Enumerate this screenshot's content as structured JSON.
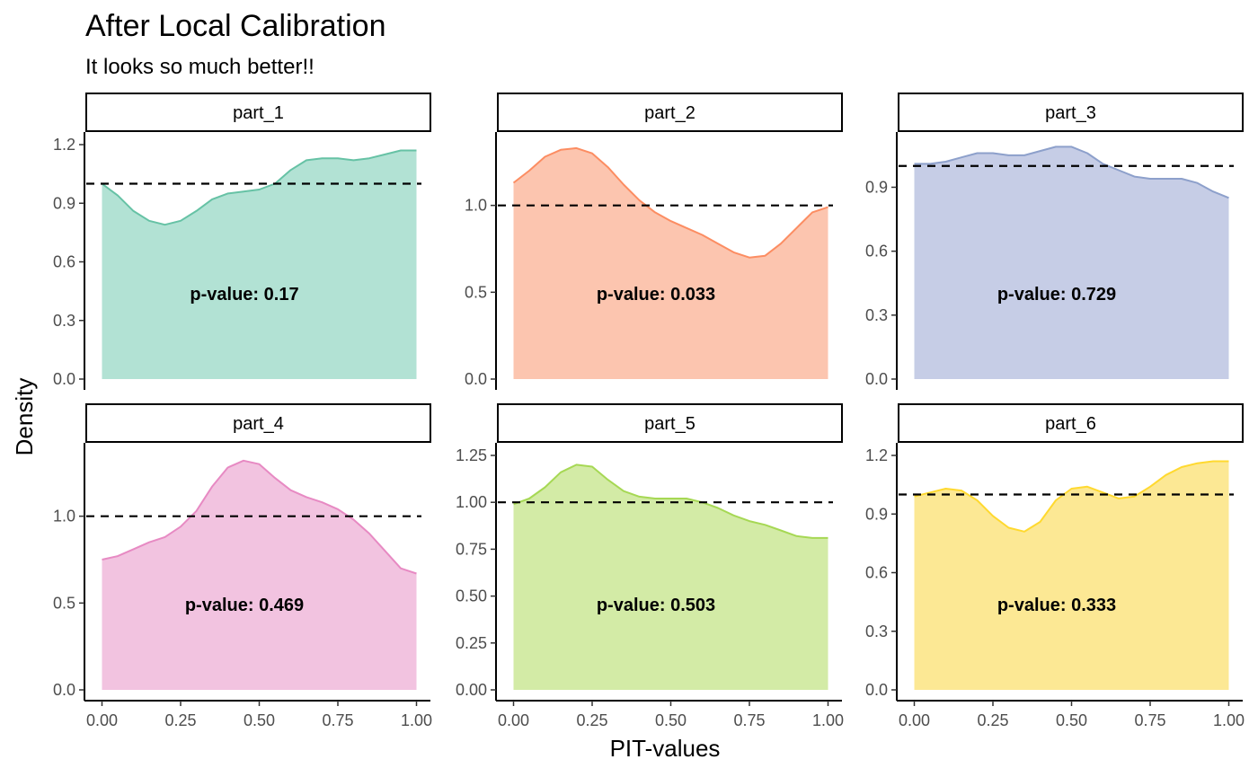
{
  "title": "After Local Calibration",
  "subtitle": "It looks so much better!!",
  "xlabel": "PIT-values",
  "ylabel": "Density",
  "chart_data": [
    {
      "type": "area",
      "panel": "part_1",
      "annotation": "p-value: 0.17",
      "fill": "#B2E2D4",
      "line": "#66C2A5",
      "reference_y": 1.0,
      "xlim": [
        0,
        1
      ],
      "ylim": [
        0,
        1.2
      ],
      "yticks": [
        0.0,
        0.3,
        0.6,
        0.9,
        1.2
      ],
      "ytick_labels": [
        "0.0",
        "0.3",
        "0.6",
        "0.9",
        "1.2"
      ],
      "x": [
        0,
        0.05,
        0.1,
        0.15,
        0.2,
        0.25,
        0.3,
        0.35,
        0.4,
        0.45,
        0.5,
        0.55,
        0.6,
        0.65,
        0.7,
        0.75,
        0.8,
        0.85,
        0.9,
        0.95,
        1.0
      ],
      "y": [
        1.0,
        0.94,
        0.86,
        0.81,
        0.79,
        0.81,
        0.86,
        0.92,
        0.95,
        0.96,
        0.97,
        1.0,
        1.07,
        1.12,
        1.13,
        1.13,
        1.12,
        1.13,
        1.15,
        1.17,
        1.17
      ]
    },
    {
      "type": "area",
      "panel": "part_2",
      "annotation": "p-value: 0.033",
      "fill": "#FCC5AF",
      "line": "#FC8D62",
      "reference_y": 1.0,
      "xlim": [
        0,
        1
      ],
      "ylim": [
        0,
        1.35
      ],
      "yticks": [
        0.0,
        0.5,
        1.0
      ],
      "ytick_labels": [
        "0.0",
        "0.5",
        "1.0"
      ],
      "x": [
        0,
        0.05,
        0.1,
        0.15,
        0.2,
        0.25,
        0.3,
        0.35,
        0.4,
        0.45,
        0.5,
        0.55,
        0.6,
        0.65,
        0.7,
        0.75,
        0.8,
        0.85,
        0.9,
        0.95,
        1.0
      ],
      "y": [
        1.13,
        1.2,
        1.28,
        1.32,
        1.33,
        1.3,
        1.22,
        1.12,
        1.03,
        0.96,
        0.91,
        0.87,
        0.83,
        0.78,
        0.73,
        0.7,
        0.71,
        0.78,
        0.87,
        0.96,
        0.99
      ]
    },
    {
      "type": "area",
      "panel": "part_3",
      "annotation": "p-value: 0.729",
      "fill": "#C6CDE6",
      "line": "#8DA0CB",
      "reference_y": 1.0,
      "xlim": [
        0,
        1
      ],
      "ylim": [
        0,
        1.1
      ],
      "yticks": [
        0.0,
        0.3,
        0.6,
        0.9
      ],
      "ytick_labels": [
        "0.0",
        "0.3",
        "0.6",
        "0.9"
      ],
      "x": [
        0,
        0.05,
        0.1,
        0.15,
        0.2,
        0.25,
        0.3,
        0.35,
        0.4,
        0.45,
        0.5,
        0.55,
        0.6,
        0.65,
        0.7,
        0.75,
        0.8,
        0.85,
        0.9,
        0.95,
        1.0
      ],
      "y": [
        1.01,
        1.01,
        1.02,
        1.04,
        1.06,
        1.06,
        1.05,
        1.05,
        1.07,
        1.09,
        1.09,
        1.06,
        1.01,
        0.98,
        0.95,
        0.94,
        0.94,
        0.94,
        0.92,
        0.88,
        0.85
      ]
    },
    {
      "type": "area",
      "panel": "part_4",
      "annotation": "p-value: 0.469",
      "fill": "#F2C3E0",
      "line": "#E78AC3",
      "reference_y": 1.0,
      "xlim": [
        0,
        1
      ],
      "ylim": [
        0,
        1.35
      ],
      "yticks": [
        0.0,
        0.5,
        1.0
      ],
      "ytick_labels": [
        "0.0",
        "0.5",
        "1.0"
      ],
      "x": [
        0,
        0.05,
        0.1,
        0.15,
        0.2,
        0.25,
        0.3,
        0.35,
        0.4,
        0.45,
        0.5,
        0.55,
        0.6,
        0.65,
        0.7,
        0.75,
        0.8,
        0.85,
        0.9,
        0.95,
        1.0
      ],
      "y": [
        0.75,
        0.77,
        0.81,
        0.85,
        0.88,
        0.94,
        1.03,
        1.17,
        1.28,
        1.32,
        1.3,
        1.22,
        1.15,
        1.11,
        1.08,
        1.04,
        0.98,
        0.9,
        0.8,
        0.7,
        0.67
      ]
    },
    {
      "type": "area",
      "panel": "part_5",
      "annotation": "p-value: 0.503",
      "fill": "#D3EBA6",
      "line": "#A6D854",
      "reference_y": 1.0,
      "xlim": [
        0,
        1
      ],
      "ylim": [
        0,
        1.25
      ],
      "yticks": [
        0.0,
        0.25,
        0.5,
        0.75,
        1.0,
        1.25
      ],
      "ytick_labels": [
        "0.00",
        "0.25",
        "0.50",
        "0.75",
        "1.00",
        "1.25"
      ],
      "x": [
        0,
        0.05,
        0.1,
        0.15,
        0.2,
        0.25,
        0.3,
        0.35,
        0.4,
        0.45,
        0.5,
        0.55,
        0.6,
        0.65,
        0.7,
        0.75,
        0.8,
        0.85,
        0.9,
        0.95,
        1.0
      ],
      "y": [
        0.99,
        1.02,
        1.08,
        1.16,
        1.2,
        1.19,
        1.12,
        1.06,
        1.03,
        1.02,
        1.02,
        1.02,
        1.0,
        0.97,
        0.93,
        0.9,
        0.88,
        0.85,
        0.82,
        0.81,
        0.81
      ]
    },
    {
      "type": "area",
      "panel": "part_6",
      "annotation": "p-value: 0.333",
      "fill": "#FCE894",
      "line": "#FFD92F",
      "reference_y": 1.0,
      "xlim": [
        0,
        1
      ],
      "ylim": [
        0,
        1.2
      ],
      "yticks": [
        0.0,
        0.3,
        0.6,
        0.9,
        1.2
      ],
      "ytick_labels": [
        "0.0",
        "0.3",
        "0.6",
        "0.9",
        "1.2"
      ],
      "x": [
        0,
        0.05,
        0.1,
        0.15,
        0.2,
        0.25,
        0.3,
        0.35,
        0.4,
        0.45,
        0.5,
        0.55,
        0.6,
        0.65,
        0.7,
        0.75,
        0.8,
        0.85,
        0.9,
        0.95,
        1.0
      ],
      "y": [
        0.99,
        1.01,
        1.03,
        1.02,
        0.97,
        0.89,
        0.83,
        0.81,
        0.86,
        0.97,
        1.03,
        1.04,
        1.01,
        0.98,
        0.99,
        1.04,
        1.1,
        1.14,
        1.16,
        1.17,
        1.17
      ]
    }
  ],
  "x_tick_labels": [
    "0.00",
    "0.25",
    "0.50",
    "0.75",
    "1.00"
  ]
}
